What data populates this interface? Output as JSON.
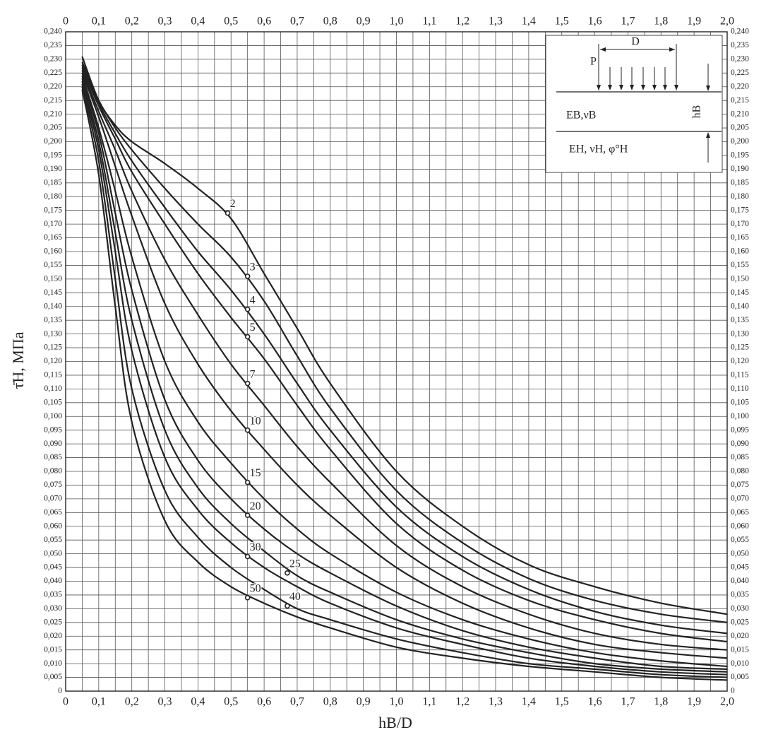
{
  "chart_data": {
    "type": "line",
    "x_label": "hВ/D",
    "y_label": "τ̄Н, МПа",
    "xlim": [
      0,
      2.0
    ],
    "ylim": [
      0,
      0.24
    ],
    "grid": true,
    "xticks": [
      0,
      {
        "value": 0.1,
        "label": "0,1"
      },
      {
        "value": 0.2,
        "label": "0,2"
      },
      {
        "value": 0.3,
        "label": "0,3"
      },
      {
        "value": 0.4,
        "label": "0,4"
      },
      {
        "value": 0.5,
        "label": "0,5"
      },
      {
        "value": 0.6,
        "label": "0,6"
      },
      {
        "value": 0.7,
        "label": "0,7"
      },
      {
        "value": 0.8,
        "label": "0,8"
      },
      {
        "value": 0.9,
        "label": "0,9"
      },
      {
        "value": 1.0,
        "label": "1,0"
      },
      {
        "value": 1.1,
        "label": "1,1"
      },
      {
        "value": 1.2,
        "label": "1,2"
      },
      {
        "value": 1.3,
        "label": "1,3"
      },
      {
        "value": 1.4,
        "label": "1,4"
      },
      {
        "value": 1.5,
        "label": "1,5"
      },
      {
        "value": 1.6,
        "label": "1,6"
      },
      {
        "value": 1.7,
        "label": "1,7"
      },
      {
        "value": 1.8,
        "label": "1,8"
      },
      {
        "value": 1.9,
        "label": "1,9"
      },
      {
        "value": 2.0,
        "label": "2,0"
      }
    ],
    "yticks": [
      0,
      {
        "value": 0.005,
        "label": "0,005"
      },
      {
        "value": 0.01,
        "label": "0,010"
      },
      {
        "value": 0.015,
        "label": "0,015"
      },
      {
        "value": 0.02,
        "label": "0,020"
      },
      {
        "value": 0.025,
        "label": "0,025"
      },
      {
        "value": 0.03,
        "label": "0,030"
      },
      {
        "value": 0.035,
        "label": "0,035"
      },
      {
        "value": 0.04,
        "label": "0,040"
      },
      {
        "value": 0.045,
        "label": "0,045"
      },
      {
        "value": 0.05,
        "label": "0,050"
      },
      {
        "value": 0.055,
        "label": "0,055"
      },
      {
        "value": 0.06,
        "label": "0,060"
      },
      {
        "value": 0.065,
        "label": "0,065"
      },
      {
        "value": 0.07,
        "label": "0,070"
      },
      {
        "value": 0.075,
        "label": "0,075"
      },
      {
        "value": 0.08,
        "label": "0,080"
      },
      {
        "value": 0.085,
        "label": "0,085"
      },
      {
        "value": 0.09,
        "label": "0,090"
      },
      {
        "value": 0.095,
        "label": "0,095"
      },
      {
        "value": 0.1,
        "label": "0,100"
      },
      {
        "value": 0.105,
        "label": "0,105"
      },
      {
        "value": 0.11,
        "label": "0,110"
      },
      {
        "value": 0.115,
        "label": "0,115"
      },
      {
        "value": 0.12,
        "label": "0,120"
      },
      {
        "value": 0.125,
        "label": "0,125"
      },
      {
        "value": 0.13,
        "label": "0,130"
      },
      {
        "value": 0.135,
        "label": "0,135"
      },
      {
        "value": 0.14,
        "label": "0,140"
      },
      {
        "value": 0.145,
        "label": "0,145"
      },
      {
        "value": 0.15,
        "label": "0,150"
      },
      {
        "value": 0.155,
        "label": "0,155"
      },
      {
        "value": 0.16,
        "label": "0,160"
      },
      {
        "value": 0.165,
        "label": "0,165"
      },
      {
        "value": 0.17,
        "label": "0,170"
      },
      {
        "value": 0.175,
        "label": "0,175"
      },
      {
        "value": 0.18,
        "label": "0,180"
      },
      {
        "value": 0.185,
        "label": "0,185"
      },
      {
        "value": 0.19,
        "label": "0,190"
      },
      {
        "value": 0.195,
        "label": "0,195"
      },
      {
        "value": 0.2,
        "label": "0,200"
      },
      {
        "value": 0.205,
        "label": "0,205"
      },
      {
        "value": 0.21,
        "label": "0,210"
      },
      {
        "value": 0.215,
        "label": "0,215"
      },
      {
        "value": 0.22,
        "label": "0,220"
      },
      {
        "value": 0.225,
        "label": "0,225"
      },
      {
        "value": 0.23,
        "label": "0,230"
      },
      {
        "value": 0.235,
        "label": "0,235"
      },
      {
        "value": 0.24,
        "label": "0,240"
      }
    ],
    "x": [
      0.05,
      0.1,
      0.15,
      0.2,
      0.3,
      0.4,
      0.5,
      0.6,
      0.7,
      0.8,
      1.0,
      1.2,
      1.4,
      1.6,
      1.8,
      2.0
    ],
    "series": [
      {
        "name": "2",
        "color": "#222222",
        "marker_x": 0.49,
        "marker_y": 0.174,
        "values": [
          0.231,
          0.215,
          0.206,
          0.2,
          0.192,
          0.183,
          0.172,
          0.152,
          0.132,
          0.112,
          0.08,
          0.06,
          0.046,
          0.038,
          0.032,
          0.028
        ]
      },
      {
        "name": "3",
        "color": "#222222",
        "marker_x": 0.55,
        "marker_y": 0.151,
        "values": [
          0.229,
          0.215,
          0.205,
          0.197,
          0.183,
          0.17,
          0.158,
          0.142,
          0.122,
          0.103,
          0.073,
          0.054,
          0.041,
          0.033,
          0.028,
          0.025
        ]
      },
      {
        "name": "4",
        "color": "#222222",
        "marker_x": 0.55,
        "marker_y": 0.139,
        "values": [
          0.228,
          0.214,
          0.203,
          0.193,
          0.176,
          0.16,
          0.146,
          0.13,
          0.112,
          0.095,
          0.067,
          0.049,
          0.037,
          0.029,
          0.024,
          0.021
        ]
      },
      {
        "name": "5",
        "color": "#222222",
        "marker_x": 0.55,
        "marker_y": 0.129,
        "values": [
          0.227,
          0.213,
          0.201,
          0.189,
          0.17,
          0.152,
          0.136,
          0.121,
          0.104,
          0.088,
          0.061,
          0.044,
          0.033,
          0.026,
          0.021,
          0.018
        ]
      },
      {
        "name": "7",
        "color": "#222222",
        "marker_x": 0.55,
        "marker_y": 0.112,
        "values": [
          0.226,
          0.211,
          0.197,
          0.182,
          0.157,
          0.137,
          0.119,
          0.104,
          0.089,
          0.076,
          0.053,
          0.038,
          0.028,
          0.021,
          0.017,
          0.015
        ]
      },
      {
        "name": "10",
        "color": "#222222",
        "marker_x": 0.55,
        "marker_y": 0.095,
        "values": [
          0.225,
          0.209,
          0.191,
          0.173,
          0.141,
          0.119,
          0.102,
          0.088,
          0.075,
          0.064,
          0.045,
          0.032,
          0.023,
          0.017,
          0.014,
          0.012
        ]
      },
      {
        "name": "15",
        "color": "#222222",
        "marker_x": 0.55,
        "marker_y": 0.076,
        "values": [
          0.224,
          0.205,
          0.182,
          0.158,
          0.12,
          0.098,
          0.083,
          0.07,
          0.059,
          0.05,
          0.036,
          0.026,
          0.019,
          0.014,
          0.011,
          0.009
        ]
      },
      {
        "name": "20",
        "color": "#222222",
        "marker_x": 0.55,
        "marker_y": 0.064,
        "values": [
          0.223,
          0.203,
          0.174,
          0.146,
          0.106,
          0.084,
          0.07,
          0.059,
          0.05,
          0.043,
          0.031,
          0.022,
          0.016,
          0.012,
          0.009,
          0.008
        ]
      },
      {
        "name": "25",
        "color": "#222222",
        "marker_x": 0.67,
        "marker_y": 0.043,
        "values": [
          0.222,
          0.2,
          0.167,
          0.135,
          0.095,
          0.074,
          0.061,
          0.051,
          0.042,
          0.036,
          0.026,
          0.019,
          0.014,
          0.01,
          0.008,
          0.007
        ]
      },
      {
        "name": "30",
        "color": "#222222",
        "marker_x": 0.55,
        "marker_y": 0.049,
        "values": [
          0.221,
          0.197,
          0.16,
          0.124,
          0.085,
          0.066,
          0.054,
          0.045,
          0.038,
          0.032,
          0.023,
          0.017,
          0.012,
          0.009,
          0.007,
          0.006
        ]
      },
      {
        "name": "40",
        "color": "#222222",
        "marker_x": 0.67,
        "marker_y": 0.031,
        "values": [
          0.22,
          0.193,
          0.15,
          0.11,
          0.073,
          0.056,
          0.045,
          0.037,
          0.03,
          0.026,
          0.019,
          0.014,
          0.01,
          0.008,
          0.006,
          0.005
        ]
      },
      {
        "name": "50",
        "color": "#222222",
        "marker_x": 0.55,
        "marker_y": 0.034,
        "values": [
          0.219,
          0.188,
          0.14,
          0.098,
          0.062,
          0.047,
          0.038,
          0.032,
          0.027,
          0.023,
          0.016,
          0.012,
          0.009,
          0.007,
          0.005,
          0.004
        ]
      }
    ],
    "inset": {
      "load": "P",
      "width": "D",
      "upper_layer": "EВ,νВ",
      "lower_layer": "EН, νН, φ°Н",
      "thickness": "hВ"
    }
  }
}
